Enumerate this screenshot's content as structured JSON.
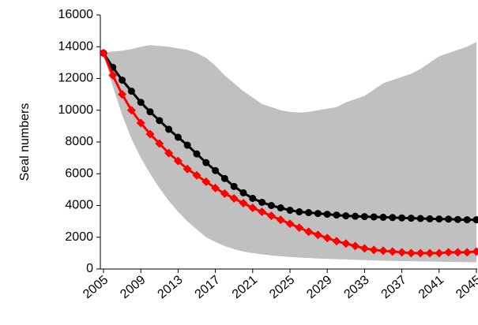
{
  "chart_data": {
    "type": "line",
    "ylabel": "Seal numbers",
    "x": [
      2005,
      2006,
      2007,
      2008,
      2009,
      2010,
      2011,
      2012,
      2013,
      2014,
      2015,
      2016,
      2017,
      2018,
      2019,
      2020,
      2021,
      2022,
      2023,
      2024,
      2025,
      2026,
      2027,
      2028,
      2029,
      2030,
      2031,
      2032,
      2033,
      2034,
      2035,
      2036,
      2037,
      2038,
      2039,
      2040,
      2041,
      2042,
      2043,
      2044,
      2045
    ],
    "xlim": [
      2005,
      2045
    ],
    "xticks": [
      2005,
      2009,
      2013,
      2017,
      2021,
      2025,
      2029,
      2033,
      2037,
      2041,
      2045
    ],
    "ylim": [
      0,
      16000
    ],
    "yticks": [
      0,
      2000,
      4000,
      6000,
      8000,
      10000,
      12000,
      14000,
      16000
    ],
    "band": {
      "color": "#c0c0c0",
      "upper": [
        13600,
        13700,
        13750,
        13850,
        14000,
        14100,
        14050,
        14000,
        13900,
        13800,
        13600,
        13300,
        12800,
        12200,
        11700,
        11200,
        10800,
        10400,
        10200,
        10000,
        9900,
        9850,
        9900,
        10000,
        10100,
        10200,
        10500,
        10700,
        10900,
        11300,
        11700,
        11900,
        12100,
        12300,
        12600,
        13000,
        13400,
        13600,
        13800,
        14000,
        14300
      ],
      "lower": [
        13600,
        11500,
        9700,
        8200,
        7000,
        6000,
        5100,
        4300,
        3600,
        3000,
        2500,
        2000,
        1700,
        1450,
        1250,
        1100,
        1000,
        920,
        850,
        800,
        760,
        720,
        690,
        660,
        640,
        620,
        600,
        580,
        560,
        540,
        520,
        510,
        500,
        490,
        480,
        470,
        460,
        450,
        440,
        430,
        420
      ]
    },
    "series": [
      {
        "color": "#000000",
        "marker": "circle",
        "values": [
          13600,
          12700,
          11900,
          11200,
          10500,
          9900,
          9350,
          8800,
          8300,
          7800,
          7250,
          6700,
          6200,
          5700,
          5200,
          4800,
          4450,
          4200,
          4000,
          3850,
          3700,
          3600,
          3550,
          3500,
          3450,
          3400,
          3350,
          3320,
          3300,
          3280,
          3260,
          3240,
          3220,
          3200,
          3180,
          3160,
          3150,
          3140,
          3120,
          3100,
          3100
        ]
      },
      {
        "color": "#ff0000",
        "marker": "diamond",
        "values": [
          13600,
          12200,
          11000,
          10000,
          9200,
          8500,
          7900,
          7300,
          6800,
          6300,
          5900,
          5500,
          5100,
          4750,
          4450,
          4150,
          3850,
          3600,
          3350,
          3100,
          2850,
          2600,
          2350,
          2150,
          1950,
          1750,
          1600,
          1450,
          1300,
          1200,
          1150,
          1100,
          1050,
          1000,
          1000,
          1000,
          1000,
          1050,
          1050,
          1050,
          1100
        ]
      }
    ]
  }
}
